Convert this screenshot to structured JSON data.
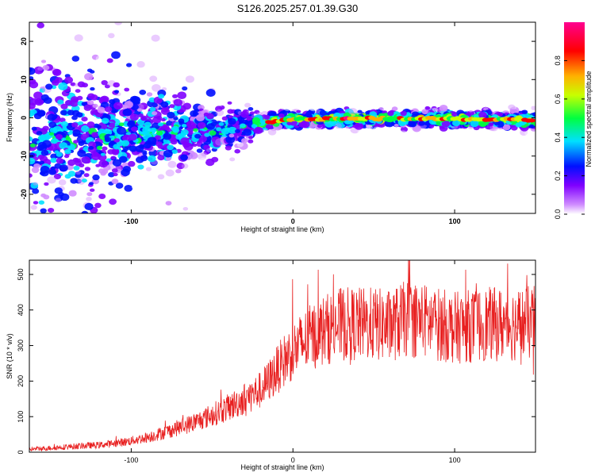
{
  "title": "S126.2025.257.01.39.G30",
  "chart_data": [
    {
      "type": "heatmap",
      "title": "S126.2025.257.01.39.G30",
      "xlabel": "Height of straight line (km)",
      "ylabel": "Frequency (Hz)",
      "xlim": [
        -163,
        150
      ],
      "ylim": [
        -25,
        25
      ],
      "xticks": [
        -100,
        0,
        100
      ],
      "yticks": [
        20,
        10,
        0,
        -10,
        -20
      ],
      "colorbar": {
        "label": "Normalized spectral amplitude",
        "range": [
          0.0,
          1.0
        ],
        "ticks": [
          0.0,
          0.2,
          0.4,
          0.6,
          0.8
        ],
        "tick_labels": [
          "0.0",
          "0.2",
          "0.4",
          "0.6",
          "0.8"
        ],
        "colors": [
          "#ffffff",
          "#d08cff",
          "#7f00ff",
          "#0010ff",
          "#00e0ff",
          "#00ff40",
          "#c8ff00",
          "#ffb000",
          "#ff0000",
          "#ff0090"
        ]
      },
      "ridge": {
        "description_points_x": [
          -163,
          -120,
          -80,
          -50,
          -30,
          -20,
          -10,
          0,
          50,
          100,
          150
        ],
        "frequency_hz": [
          -5,
          -4.5,
          -3.5,
          -3,
          -2.5,
          -1.5,
          -0.7,
          -0.4,
          -0.2,
          -0.3,
          -0.6
        ]
      }
    },
    {
      "type": "line",
      "xlabel": "Height of straight line (km)",
      "ylabel": "SNR (10 * v/v)",
      "xlim": [
        -163,
        150
      ],
      "ylim": [
        0,
        540
      ],
      "xticks": [
        -100,
        0,
        100
      ],
      "yticks": [
        0,
        100,
        200,
        300,
        400,
        500
      ],
      "color": "#e82020",
      "series": [
        {
          "name": "SNR",
          "x": [
            -163,
            -150,
            -140,
            -130,
            -120,
            -110,
            -100,
            -90,
            -80,
            -70,
            -60,
            -50,
            -40,
            -30,
            -20,
            -15,
            -10,
            -5,
            0,
            10,
            20,
            30,
            40,
            50,
            60,
            70,
            80,
            90,
            100,
            110,
            120,
            130,
            140,
            150
          ],
          "y": [
            8,
            12,
            15,
            18,
            20,
            25,
            32,
            42,
            55,
            70,
            85,
            105,
            125,
            150,
            175,
            200,
            230,
            260,
            285,
            320,
            345,
            360,
            360,
            360,
            355,
            375,
            370,
            360,
            350,
            355,
            360,
            360,
            360,
            365
          ]
        }
      ]
    }
  ]
}
